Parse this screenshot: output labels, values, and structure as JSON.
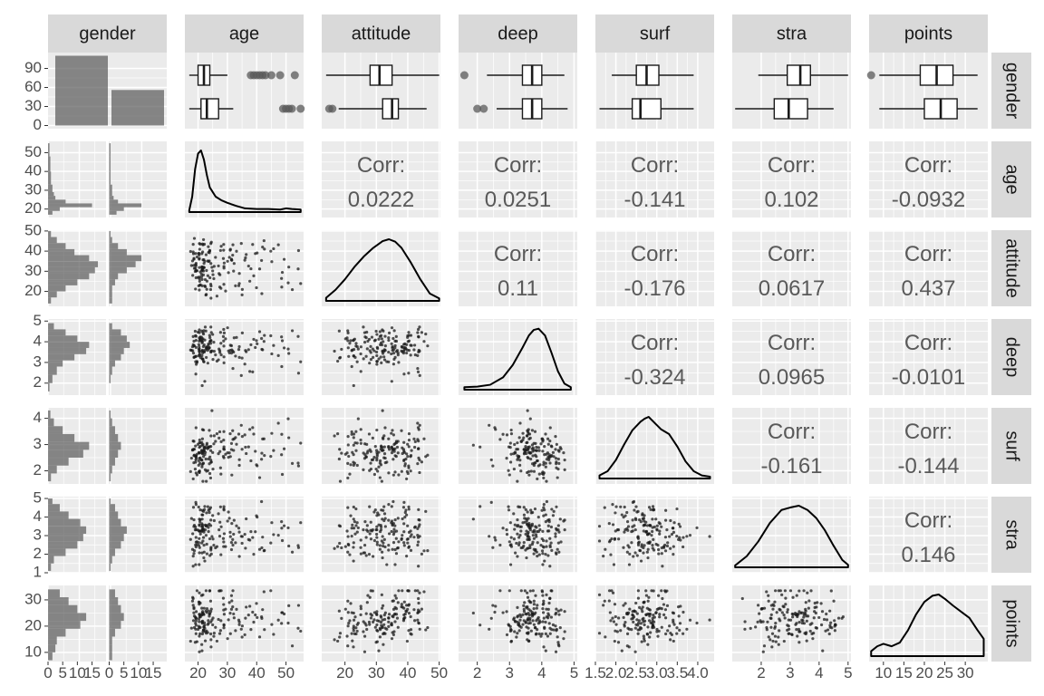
{
  "chart_data": {
    "type": "scatter",
    "variables": [
      "gender",
      "age",
      "attitude",
      "deep",
      "surf",
      "stra",
      "points"
    ],
    "colors": {
      "panel_bg": "#ebebeb",
      "grid": "#ffffff",
      "strip_bg": "#d9d9d9",
      "bar_fill": "#595959",
      "point": "#1a1a1a",
      "box_line": "#1a1a1a",
      "corr_text": "#595959",
      "tick_text": "#4d4d4d"
    },
    "x_axis": {
      "gender": {
        "range": [
          0,
          19
        ],
        "ticks": [
          {
            "v": 0,
            "t": "0"
          },
          {
            "v": 5,
            "t": "5"
          },
          {
            "v": 10,
            "t": "10"
          },
          {
            "v": 15,
            "t": "15"
          }
        ]
      },
      "age": {
        "range": [
          15.5,
          56
        ],
        "ticks": [
          {
            "v": 20,
            "t": "20"
          },
          {
            "v": 30,
            "t": "30"
          },
          {
            "v": 40,
            "t": "40"
          },
          {
            "v": 50,
            "t": "50"
          }
        ]
      },
      "attitude": {
        "range": [
          12.6,
          50.4
        ],
        "ticks": [
          {
            "v": 20,
            "t": "20"
          },
          {
            "v": 30,
            "t": "30"
          },
          {
            "v": 40,
            "t": "40"
          },
          {
            "v": 50,
            "t": "50"
          }
        ]
      },
      "deep": {
        "range": [
          1.42,
          5.1
        ],
        "ticks": [
          {
            "v": 2,
            "t": "2"
          },
          {
            "v": 3,
            "t": "3"
          },
          {
            "v": 4,
            "t": "4"
          },
          {
            "v": 5,
            "t": "5"
          }
        ]
      },
      "surf": {
        "range": [
          1.5,
          4.4
        ],
        "ticks": [
          {
            "v": 1.5,
            "t": "1.5"
          },
          {
            "v": 2.0,
            "t": "2.0"
          },
          {
            "v": 2.5,
            "t": "2.5"
          },
          {
            "v": 3.0,
            "t": "3.0"
          },
          {
            "v": 3.5,
            "t": "3.5"
          },
          {
            "v": 4.0,
            "t": "4.0"
          }
        ]
      },
      "stra": {
        "range": [
          1.0,
          5.1
        ],
        "ticks": [
          {
            "v": 2,
            "t": "2"
          },
          {
            "v": 3,
            "t": "3"
          },
          {
            "v": 4,
            "t": "4"
          },
          {
            "v": 5,
            "t": "5"
          }
        ]
      },
      "points": {
        "range": [
          6.5,
          35.5
        ],
        "ticks": [
          {
            "v": 10,
            "t": "10"
          },
          {
            "v": 15,
            "t": "15"
          },
          {
            "v": 20,
            "t": "20"
          },
          {
            "v": 25,
            "t": "25"
          },
          {
            "v": 30,
            "t": "30"
          }
        ]
      }
    },
    "y_axis": {
      "gender": {
        "range": [
          -5,
          115
        ],
        "ticks": [
          {
            "v": 0,
            "t": "0"
          },
          {
            "v": 30,
            "t": "30"
          },
          {
            "v": 60,
            "t": "60"
          },
          {
            "v": 90,
            "t": "90"
          }
        ]
      },
      "age": {
        "range": [
          15.5,
          56
        ],
        "ticks": [
          {
            "v": 20,
            "t": "20"
          },
          {
            "v": 30,
            "t": "30"
          },
          {
            "v": 40,
            "t": "40"
          },
          {
            "v": 50,
            "t": "50"
          }
        ]
      },
      "attitude": {
        "range": [
          12.6,
          50.4
        ],
        "ticks": [
          {
            "v": 20,
            "t": "20"
          },
          {
            "v": 30,
            "t": "30"
          },
          {
            "v": 40,
            "t": "40"
          },
          {
            "v": 50,
            "t": "50"
          }
        ]
      },
      "deep": {
        "range": [
          1.42,
          5.1
        ],
        "ticks": [
          {
            "v": 2,
            "t": "2"
          },
          {
            "v": 3,
            "t": "3"
          },
          {
            "v": 4,
            "t": "4"
          },
          {
            "v": 5,
            "t": "5"
          }
        ]
      },
      "surf": {
        "range": [
          1.5,
          4.4
        ],
        "ticks": [
          {
            "v": 2,
            "t": "2"
          },
          {
            "v": 3,
            "t": "3"
          },
          {
            "v": 4,
            "t": "4"
          }
        ]
      },
      "stra": {
        "range": [
          1.0,
          5.1
        ],
        "ticks": [
          {
            "v": 1,
            "t": "1"
          },
          {
            "v": 2,
            "t": "2"
          },
          {
            "v": 3,
            "t": "3"
          },
          {
            "v": 4,
            "t": "4"
          },
          {
            "v": 5,
            "t": "5"
          }
        ]
      },
      "points": {
        "range": [
          6.5,
          35.5
        ],
        "ticks": [
          {
            "v": 10,
            "t": "10"
          },
          {
            "v": 20,
            "t": "20"
          },
          {
            "v": 30,
            "t": "30"
          }
        ]
      }
    },
    "gender_counts": [
      110,
      56
    ],
    "correlations": [
      {
        "row": "age",
        "col": "attitude",
        "label": "Corr:",
        "value": "0.0222"
      },
      {
        "row": "age",
        "col": "deep",
        "label": "Corr:",
        "value": "0.0251"
      },
      {
        "row": "age",
        "col": "surf",
        "label": "Corr:",
        "value": "-0.141"
      },
      {
        "row": "age",
        "col": "stra",
        "label": "Corr:",
        "value": "0.102"
      },
      {
        "row": "age",
        "col": "points",
        "label": "Corr:",
        "value": "-0.0932"
      },
      {
        "row": "attitude",
        "col": "deep",
        "label": "Corr:",
        "value": "0.11"
      },
      {
        "row": "attitude",
        "col": "surf",
        "label": "Corr:",
        "value": "-0.176"
      },
      {
        "row": "attitude",
        "col": "stra",
        "label": "Corr:",
        "value": "0.0617"
      },
      {
        "row": "attitude",
        "col": "points",
        "label": "Corr:",
        "value": "0.437"
      },
      {
        "row": "deep",
        "col": "surf",
        "label": "Corr:",
        "value": "-0.324"
      },
      {
        "row": "deep",
        "col": "stra",
        "label": "Corr:",
        "value": "0.0965"
      },
      {
        "row": "deep",
        "col": "points",
        "label": "Corr:",
        "value": "-0.0101"
      },
      {
        "row": "surf",
        "col": "stra",
        "label": "Corr:",
        "value": "-0.161"
      },
      {
        "row": "surf",
        "col": "points",
        "label": "Corr:",
        "value": "-0.144"
      },
      {
        "row": "stra",
        "col": "points",
        "label": "Corr:",
        "value": "0.146"
      }
    ],
    "boxplots": {
      "age": [
        {
          "min": 17,
          "q1": 20,
          "median": 22,
          "q3": 24,
          "max": 30,
          "outliers": [
            38,
            39,
            40,
            41,
            42,
            43,
            45,
            48,
            53
          ]
        },
        {
          "min": 17,
          "q1": 21,
          "median": 23,
          "q3": 27,
          "max": 32,
          "outliers": [
            49,
            50,
            51,
            52,
            55
          ]
        }
      ],
      "attitude": [
        {
          "min": 14,
          "q1": 28,
          "median": 31,
          "q3": 35,
          "max": 50,
          "outliers": []
        },
        {
          "min": 18,
          "q1": 32,
          "median": 35,
          "q3": 37,
          "max": 46,
          "outliers": [
            15,
            16
          ]
        }
      ],
      "deep": [
        {
          "min": 2.3,
          "q1": 3.4,
          "median": 3.7,
          "q3": 4.0,
          "max": 4.7,
          "outliers": [
            1.6
          ]
        },
        {
          "min": 2.6,
          "q1": 3.4,
          "median": 3.7,
          "q3": 4.0,
          "max": 4.8,
          "outliers": [
            2.0,
            2.2
          ]
        }
      ],
      "surf": [
        {
          "min": 1.9,
          "q1": 2.5,
          "median": 2.75,
          "q3": 3.05,
          "max": 3.9,
          "outliers": []
        },
        {
          "min": 1.6,
          "q1": 2.4,
          "median": 2.6,
          "q3": 3.1,
          "max": 3.9,
          "outliers": []
        }
      ],
      "stra": [
        {
          "min": 1.9,
          "q1": 2.9,
          "median": 3.35,
          "q3": 3.7,
          "max": 5.0,
          "outliers": []
        },
        {
          "min": 1.1,
          "q1": 2.45,
          "median": 2.95,
          "q3": 3.6,
          "max": 4.5,
          "outliers": []
        }
      ],
      "points": [
        {
          "min": 9,
          "q1": 19,
          "median": 23,
          "q3": 27,
          "max": 33,
          "outliers": [
            7
          ]
        },
        {
          "min": 9,
          "q1": 20,
          "median": 24,
          "q3": 28,
          "max": 33,
          "outliers": []
        }
      ]
    },
    "densities": {
      "age": {
        "x": [
          17,
          18,
          19,
          20,
          21,
          22,
          23,
          24,
          26,
          28,
          30,
          33,
          36,
          40,
          44,
          48,
          50,
          52,
          55
        ],
        "y": [
          0.03,
          0.25,
          0.7,
          0.95,
          1.0,
          0.85,
          0.6,
          0.4,
          0.25,
          0.19,
          0.15,
          0.1,
          0.06,
          0.05,
          0.05,
          0.04,
          0.06,
          0.05,
          0.04
        ]
      },
      "attitude": {
        "x": [
          14,
          17,
          20,
          23,
          26,
          29,
          32,
          34,
          36,
          38,
          41,
          44,
          47,
          50
        ],
        "y": [
          0.05,
          0.18,
          0.35,
          0.55,
          0.72,
          0.86,
          0.97,
          1.0,
          0.96,
          0.86,
          0.62,
          0.35,
          0.12,
          0.04
        ]
      },
      "deep": {
        "x": [
          1.6,
          2.0,
          2.4,
          2.8,
          3.1,
          3.4,
          3.6,
          3.75,
          3.9,
          4.1,
          4.3,
          4.5,
          4.7,
          4.9
        ],
        "y": [
          0.04,
          0.05,
          0.08,
          0.2,
          0.4,
          0.68,
          0.88,
          0.97,
          0.99,
          0.88,
          0.6,
          0.3,
          0.1,
          0.04
        ]
      },
      "surf": {
        "x": [
          1.6,
          1.8,
          2.0,
          2.2,
          2.4,
          2.6,
          2.7,
          2.8,
          2.95,
          3.1,
          3.3,
          3.5,
          3.7,
          3.9,
          4.1,
          4.3
        ],
        "y": [
          0.05,
          0.12,
          0.3,
          0.55,
          0.78,
          0.92,
          0.97,
          1.0,
          0.9,
          0.8,
          0.72,
          0.52,
          0.28,
          0.12,
          0.05,
          0.03
        ]
      },
      "stra": {
        "x": [
          1.1,
          1.5,
          1.9,
          2.3,
          2.7,
          3.0,
          3.3,
          3.6,
          3.9,
          4.2,
          4.5,
          4.8,
          5.0
        ],
        "y": [
          0.03,
          0.18,
          0.42,
          0.72,
          0.93,
          0.97,
          1.0,
          0.93,
          0.8,
          0.6,
          0.35,
          0.12,
          0.04
        ]
      },
      "points": {
        "x": [
          7,
          8.5,
          10,
          12,
          14,
          16,
          18,
          20,
          22,
          23.5,
          25,
          27,
          29,
          31,
          33,
          34.5
        ],
        "y": [
          0.08,
          0.16,
          0.2,
          0.16,
          0.22,
          0.42,
          0.68,
          0.88,
          0.98,
          1.0,
          0.93,
          0.82,
          0.72,
          0.62,
          0.42,
          0.28
        ]
      }
    },
    "histograms": {
      "age": {
        "bins": [
          [
            17,
            19,
            1.5,
            2.5
          ],
          [
            19,
            21,
            4,
            5
          ],
          [
            21,
            23,
            15,
            11
          ],
          [
            23,
            25,
            6,
            3
          ],
          [
            25,
            27,
            2.5,
            1.5
          ],
          [
            27,
            29,
            2,
            1
          ],
          [
            29,
            33,
            1.5,
            1
          ],
          [
            33,
            40,
            1,
            0.5
          ],
          [
            40,
            48,
            0.8,
            0.5
          ],
          [
            48,
            55,
            0.5,
            0.5
          ]
        ]
      },
      "attitude": {
        "bins": [
          [
            14,
            17,
            1,
            1
          ],
          [
            17,
            20,
            3,
            1
          ],
          [
            20,
            23,
            6,
            1
          ],
          [
            23,
            26,
            10,
            2
          ],
          [
            26,
            29,
            14,
            3
          ],
          [
            29,
            32,
            16,
            6
          ],
          [
            32,
            35,
            17,
            9
          ],
          [
            35,
            38,
            14,
            11
          ],
          [
            38,
            41,
            9,
            6
          ],
          [
            41,
            44,
            6,
            3
          ],
          [
            44,
            47,
            3,
            1
          ],
          [
            47,
            50,
            1,
            0.5
          ]
        ]
      },
      "deep": {
        "bins": [
          [
            1.6,
            2.0,
            0.5,
            0
          ],
          [
            2.0,
            2.4,
            1.5,
            0.5
          ],
          [
            2.4,
            2.8,
            3,
            1
          ],
          [
            2.8,
            3.1,
            5,
            2
          ],
          [
            3.1,
            3.4,
            9,
            4
          ],
          [
            3.4,
            3.7,
            13,
            5
          ],
          [
            3.7,
            4.0,
            14,
            7
          ],
          [
            4.0,
            4.3,
            10,
            6
          ],
          [
            4.3,
            4.6,
            6,
            4
          ],
          [
            4.6,
            4.9,
            2,
            1
          ]
        ]
      },
      "surf": {
        "bins": [
          [
            1.6,
            1.9,
            1,
            0.5
          ],
          [
            1.9,
            2.2,
            3,
            1
          ],
          [
            2.2,
            2.5,
            7,
            2
          ],
          [
            2.5,
            2.8,
            12,
            3
          ],
          [
            2.8,
            3.1,
            14,
            4
          ],
          [
            3.1,
            3.4,
            9,
            3
          ],
          [
            3.4,
            3.7,
            5,
            2
          ],
          [
            3.7,
            4.0,
            2,
            1
          ],
          [
            4.0,
            4.3,
            0.8,
            0.5
          ]
        ]
      },
      "stra": {
        "bins": [
          [
            1.1,
            1.5,
            1,
            0.5
          ],
          [
            1.5,
            1.9,
            2,
            1
          ],
          [
            1.9,
            2.3,
            6,
            2
          ],
          [
            2.3,
            2.7,
            10,
            4
          ],
          [
            2.7,
            3.1,
            12,
            5
          ],
          [
            3.1,
            3.5,
            13,
            6
          ],
          [
            3.5,
            3.9,
            11,
            4
          ],
          [
            3.9,
            4.3,
            7,
            3
          ],
          [
            4.3,
            4.7,
            4,
            2
          ],
          [
            4.7,
            5.0,
            1.5,
            0.5
          ]
        ]
      },
      "points": {
        "bins": [
          [
            7,
            10,
            1.5,
            1
          ],
          [
            10,
            13,
            2.5,
            1
          ],
          [
            13,
            16,
            3,
            1
          ],
          [
            16,
            19,
            6,
            2
          ],
          [
            19,
            22,
            11,
            4
          ],
          [
            22,
            25,
            13,
            5
          ],
          [
            25,
            28,
            10,
            4
          ],
          [
            28,
            31,
            7,
            3
          ],
          [
            31,
            34,
            4,
            2
          ]
        ]
      }
    }
  }
}
